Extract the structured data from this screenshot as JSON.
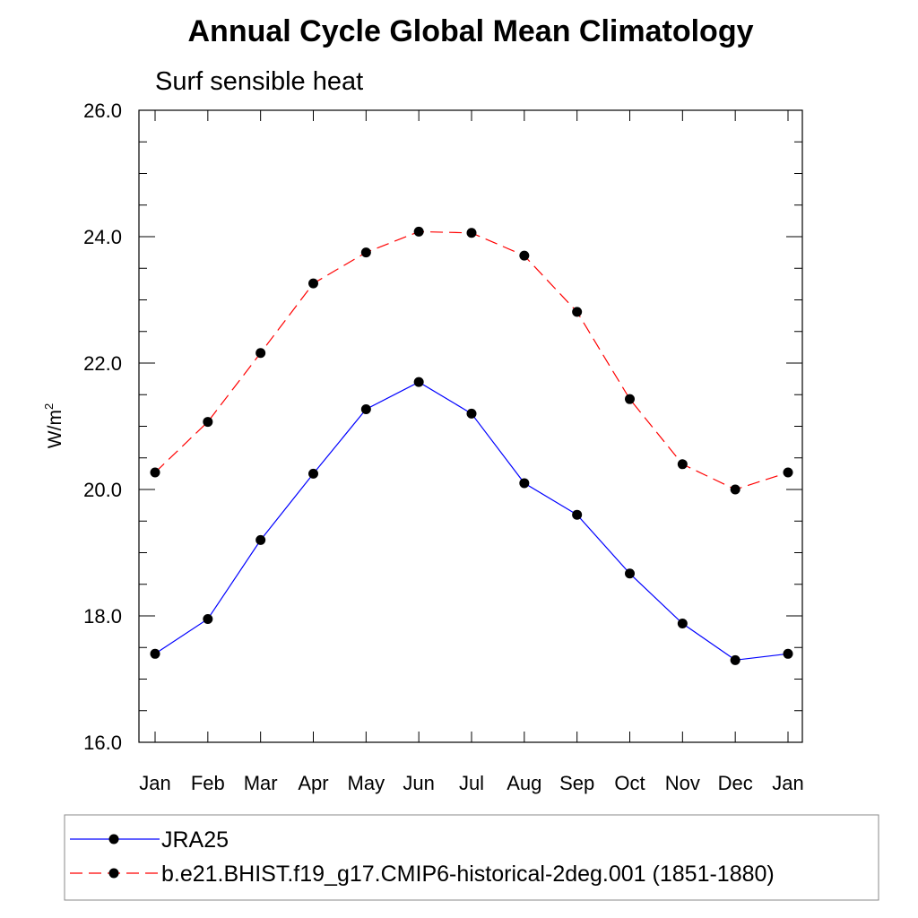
{
  "chart_data": {
    "type": "line",
    "title": "Annual Cycle Global Mean Climatology",
    "subtitle": "Surf sensible heat",
    "ylabel": "W/m",
    "ylabel_superscript": "2",
    "categories": [
      "Jan",
      "Feb",
      "Mar",
      "Apr",
      "May",
      "Jun",
      "Jul",
      "Aug",
      "Sep",
      "Oct",
      "Nov",
      "Dec",
      "Jan"
    ],
    "ylim": [
      16.0,
      26.0
    ],
    "yticks": [
      "16.0",
      "18.0",
      "20.0",
      "22.0",
      "24.0",
      "26.0"
    ],
    "grid": false,
    "legend_position": "bottom",
    "series": [
      {
        "name": "JRA25",
        "color": "#0000ff",
        "style": "solid",
        "marker": "circle",
        "values": [
          17.4,
          17.95,
          19.2,
          20.25,
          21.27,
          21.7,
          21.2,
          20.1,
          19.6,
          18.67,
          17.88,
          17.3,
          17.4
        ]
      },
      {
        "name": "b.e21.BHIST.f19_g17.CMIP6-historical-2deg.001 (1851-1880)",
        "color": "#ff0000",
        "style": "dashed",
        "marker": "circle",
        "values": [
          20.27,
          21.07,
          22.16,
          23.26,
          23.75,
          24.08,
          24.06,
          23.7,
          22.81,
          21.43,
          20.4,
          20.0,
          20.27
        ]
      }
    ]
  }
}
